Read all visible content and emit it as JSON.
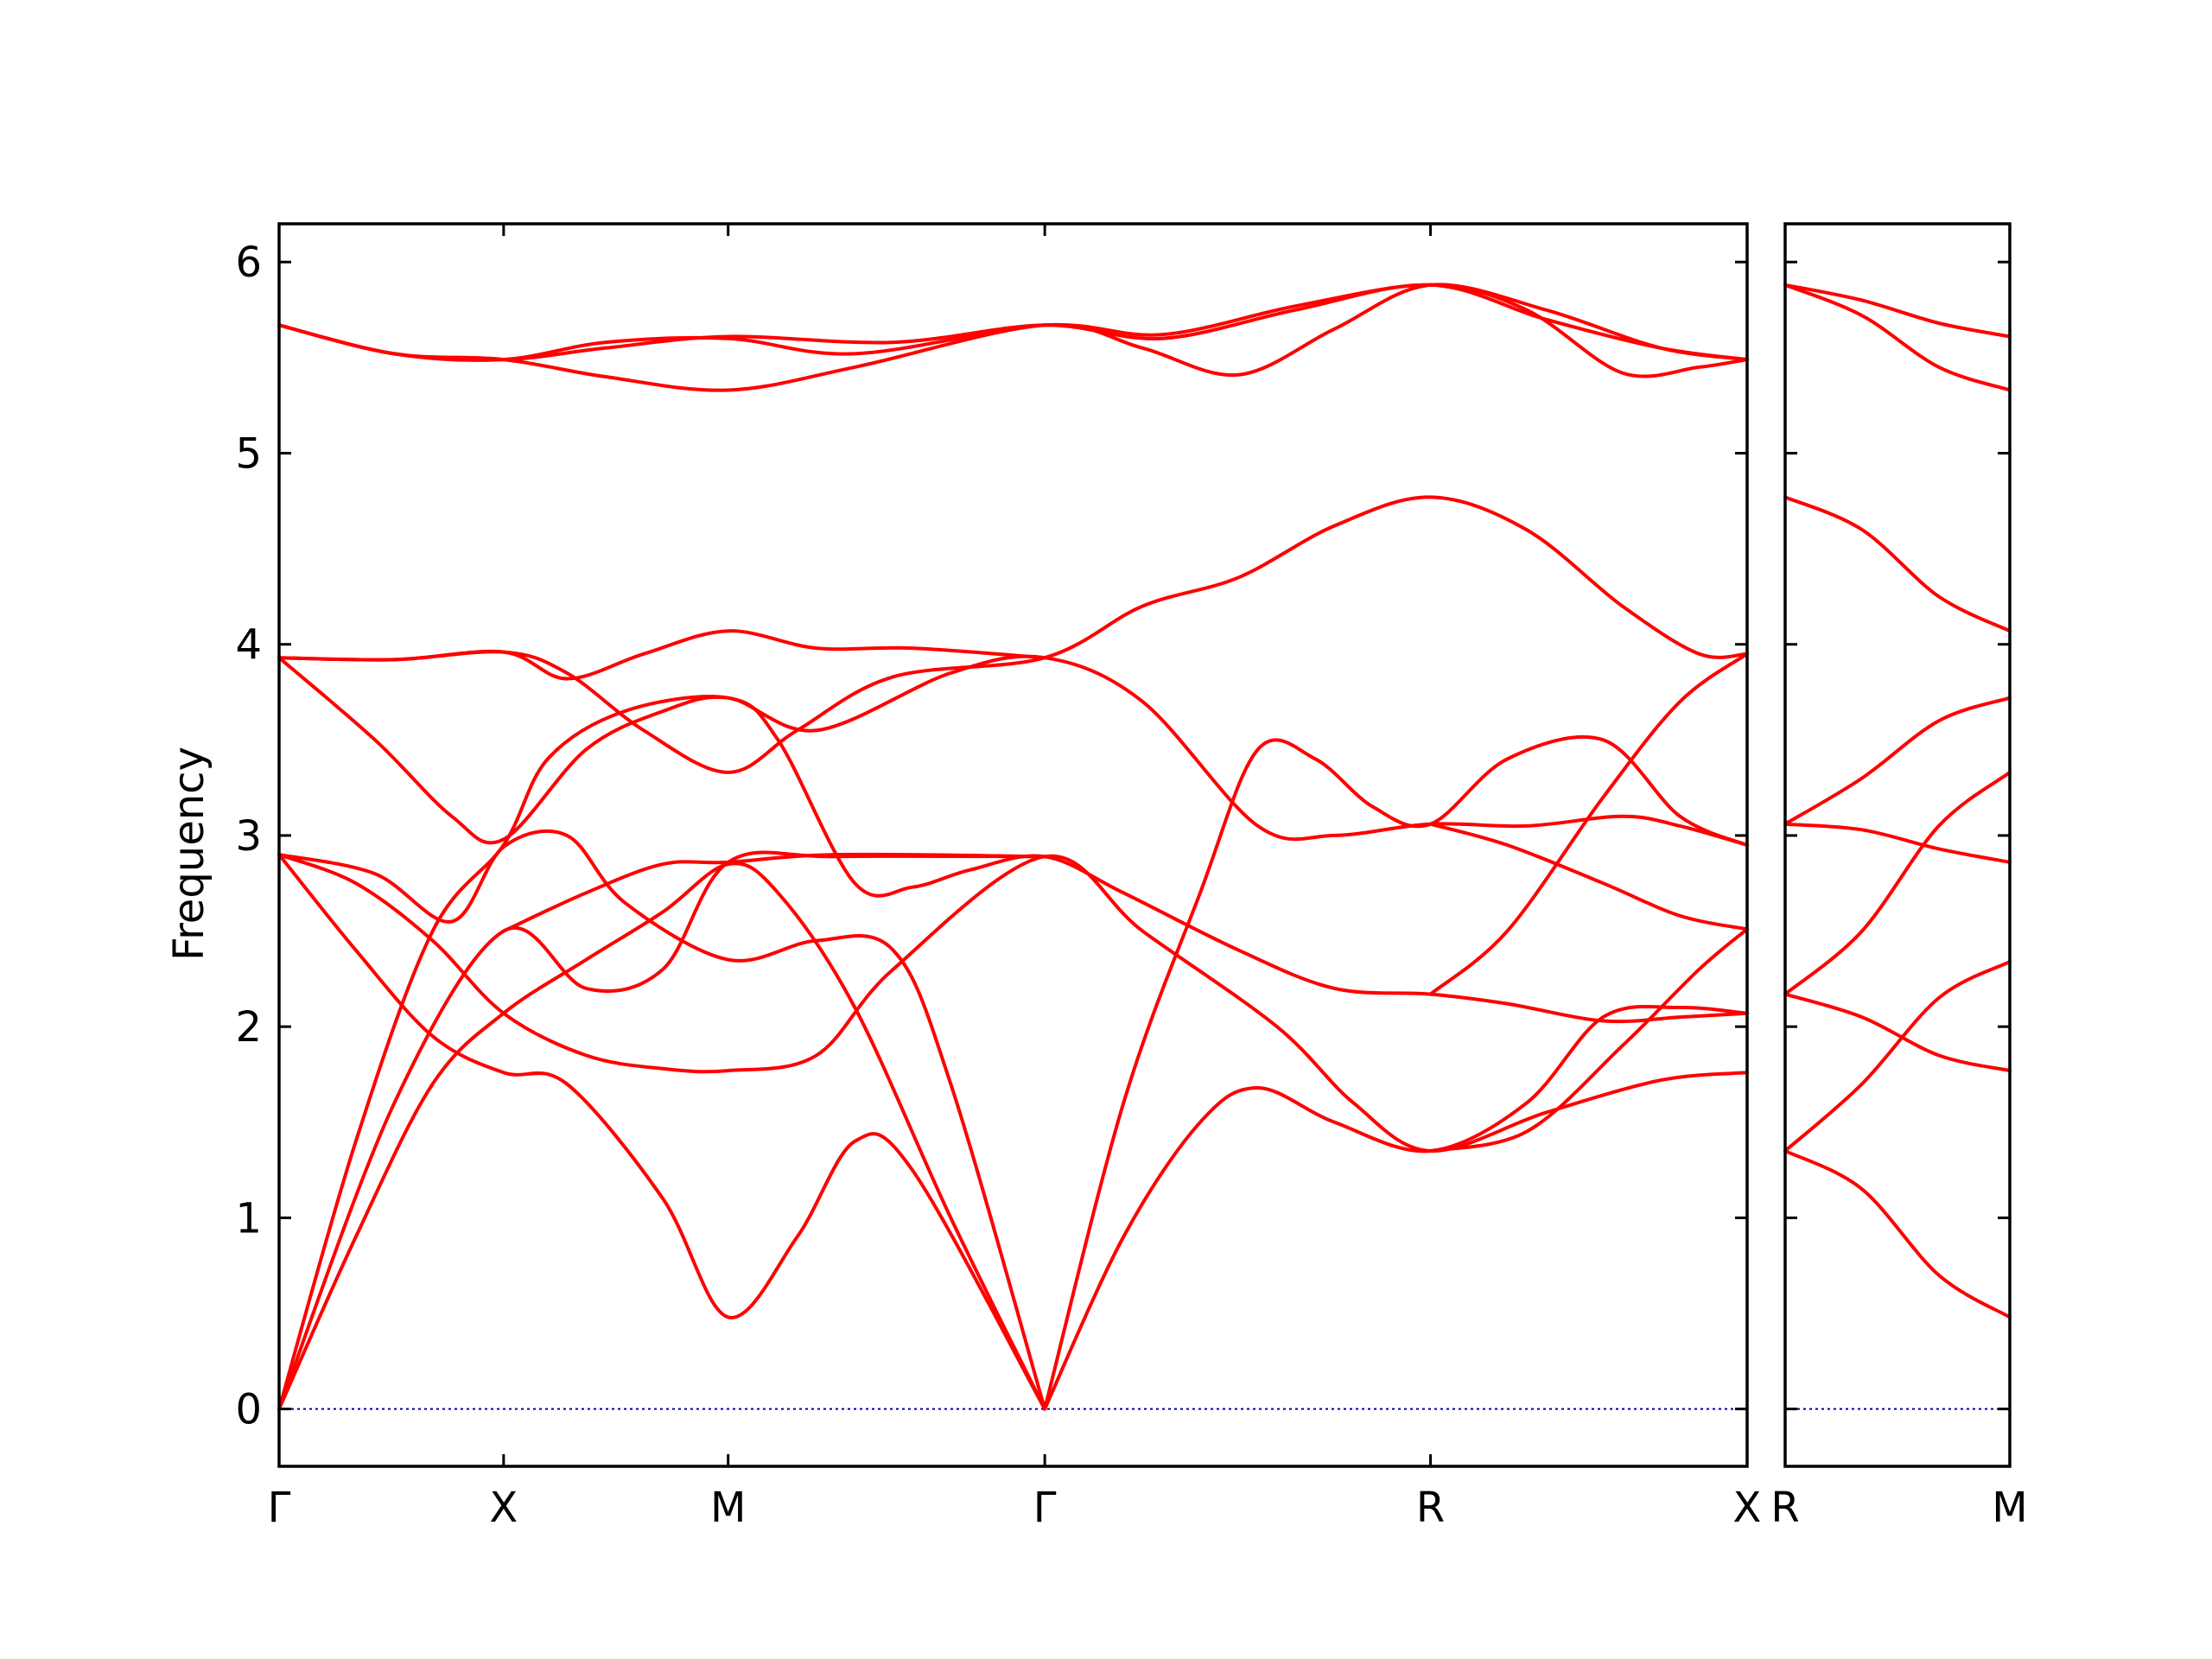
{
  "chart_data": {
    "type": "line",
    "ylabel": "Frequency",
    "xlabel": "",
    "title": "",
    "ylim": [
      -0.3,
      6.2
    ],
    "yticks": [
      0,
      1,
      2,
      3,
      4,
      5,
      6
    ],
    "grid": false,
    "line_color": "#ff0000",
    "zero_line_color": "#0000aa",
    "panels": [
      {
        "name": "main",
        "xlim": [
          0,
          7.65
        ],
        "xticks": [
          {
            "x": 0,
            "label": "Γ"
          },
          {
            "x": 1.17,
            "label": "X"
          },
          {
            "x": 2.34,
            "label": "M"
          },
          {
            "x": 3.99,
            "label": "Γ"
          },
          {
            "x": 6.0,
            "label": "R"
          },
          {
            "x": 7.65,
            "label": "X"
          }
        ],
        "bands": [
          [
            [
              0,
              0
            ],
            [
              0.4,
              1.4
            ],
            [
              0.8,
              2.5
            ],
            [
              1.17,
              2.95
            ],
            [
              1.4,
              3.4
            ],
            [
              1.8,
              3.65
            ],
            [
              2.34,
              3.72
            ],
            [
              2.6,
              3.5
            ],
            [
              3.0,
              2.75
            ],
            [
              3.3,
              2.73
            ],
            [
              3.6,
              2.82
            ],
            [
              3.99,
              2.89
            ],
            [
              4.4,
              2.7
            ],
            [
              5.0,
              2.4
            ],
            [
              5.5,
              2.2
            ],
            [
              6.0,
              2.17
            ],
            [
              6.4,
              2.12
            ],
            [
              6.9,
              2.03
            ],
            [
              7.3,
              2.05
            ],
            [
              7.65,
              2.07
            ]
          ],
          [
            [
              0,
              0
            ],
            [
              0.4,
              0.9
            ],
            [
              0.8,
              1.7
            ],
            [
              1.17,
              2.07
            ],
            [
              1.6,
              2.35
            ],
            [
              2.0,
              2.6
            ],
            [
              2.34,
              2.85
            ],
            [
              2.6,
              2.7
            ],
            [
              3.0,
              2.1
            ],
            [
              3.5,
              1.0
            ],
            [
              3.99,
              0
            ]
          ],
          [
            [
              0,
              2.9
            ],
            [
              0.4,
              2.4
            ],
            [
              0.8,
              1.95
            ],
            [
              1.17,
              1.76
            ],
            [
              1.5,
              1.7
            ],
            [
              2.0,
              1.1
            ],
            [
              2.34,
              0.48
            ],
            [
              2.7,
              0.9
            ],
            [
              3.0,
              1.4
            ],
            [
              3.3,
              1.25
            ],
            [
              3.99,
              0
            ]
          ],
          [
            [
              0,
              2.9
            ],
            [
              0.4,
              2.75
            ],
            [
              0.8,
              2.45
            ],
            [
              1.17,
              2.07
            ],
            [
              1.6,
              1.85
            ],
            [
              2.0,
              1.78
            ],
            [
              2.34,
              1.77
            ],
            [
              2.8,
              1.85
            ],
            [
              3.2,
              2.3
            ],
            [
              3.99,
              2.89
            ],
            [
              4.5,
              2.5
            ],
            [
              5.2,
              2.0
            ],
            [
              5.6,
              1.6
            ],
            [
              6.0,
              1.35
            ],
            [
              6.6,
              1.55
            ],
            [
              7.2,
              1.72
            ],
            [
              7.65,
              1.76
            ]
          ],
          [
            [
              0,
              2.9
            ],
            [
              0.5,
              2.8
            ],
            [
              0.9,
              2.55
            ],
            [
              1.17,
              2.94
            ],
            [
              1.5,
              3.0
            ],
            [
              1.8,
              2.65
            ],
            [
              2.34,
              2.35
            ],
            [
              2.8,
              2.45
            ],
            [
              3.2,
              2.4
            ],
            [
              3.5,
              1.7
            ],
            [
              3.99,
              0
            ]
          ],
          [
            [
              0,
              3.93
            ],
            [
              0.5,
              3.5
            ],
            [
              0.9,
              3.1
            ],
            [
              1.17,
              2.98
            ],
            [
              1.6,
              3.45
            ],
            [
              2.0,
              3.65
            ],
            [
              2.34,
              3.72
            ],
            [
              2.8,
              3.55
            ],
            [
              3.5,
              3.85
            ],
            [
              3.99,
              3.93
            ],
            [
              4.5,
              3.7
            ],
            [
              5.1,
              3.05
            ],
            [
              5.5,
              3.0
            ],
            [
              6.0,
              3.06
            ],
            [
              6.5,
              3.05
            ],
            [
              7.0,
              3.1
            ],
            [
              7.3,
              3.05
            ],
            [
              7.65,
              2.95
            ]
          ],
          [
            [
              0,
              3.93
            ],
            [
              0.6,
              3.92
            ],
            [
              1.17,
              3.96
            ],
            [
              1.5,
              3.85
            ],
            [
              1.9,
              3.55
            ],
            [
              2.34,
              3.33
            ],
            [
              2.7,
              3.55
            ],
            [
              3.2,
              3.83
            ],
            [
              3.99,
              3.93
            ],
            [
              4.5,
              4.2
            ],
            [
              5.0,
              4.35
            ],
            [
              5.5,
              4.62
            ],
            [
              6.0,
              4.77
            ],
            [
              6.5,
              4.6
            ],
            [
              7.0,
              4.2
            ],
            [
              7.4,
              3.95
            ],
            [
              7.65,
              3.95
            ]
          ],
          [
            [
              0,
              3.93
            ],
            [
              0.6,
              3.92
            ],
            [
              1.17,
              3.96
            ],
            [
              1.5,
              3.82
            ],
            [
              1.9,
              3.95
            ],
            [
              2.34,
              4.07
            ],
            [
              2.8,
              3.98
            ],
            [
              3.3,
              3.98
            ],
            [
              3.99,
              3.93
            ]
          ],
          [
            [
              0,
              5.67
            ],
            [
              0.6,
              5.52
            ],
            [
              1.17,
              5.49
            ],
            [
              1.7,
              5.55
            ],
            [
              2.34,
              5.61
            ],
            [
              3.2,
              5.58
            ],
            [
              3.99,
              5.67
            ],
            [
              4.6,
              5.6
            ],
            [
              5.3,
              5.75
            ],
            [
              6.0,
              5.88
            ],
            [
              6.6,
              5.7
            ],
            [
              7.2,
              5.55
            ],
            [
              7.65,
              5.49
            ]
          ],
          [
            [
              0,
              5.67
            ],
            [
              0.6,
              5.52
            ],
            [
              1.17,
              5.49
            ],
            [
              1.7,
              5.4
            ],
            [
              2.34,
              5.33
            ],
            [
              3.0,
              5.45
            ],
            [
              3.99,
              5.67
            ],
            [
              4.5,
              5.55
            ],
            [
              5.0,
              5.41
            ],
            [
              5.5,
              5.65
            ],
            [
              6.0,
              5.88
            ],
            [
              6.6,
              5.75
            ],
            [
              7.2,
              5.55
            ],
            [
              7.65,
              5.49
            ]
          ],
          [
            [
              0,
              5.67
            ],
            [
              0.6,
              5.52
            ],
            [
              1.17,
              5.49
            ],
            [
              1.7,
              5.58
            ],
            [
              2.34,
              5.6
            ],
            [
              3.0,
              5.52
            ],
            [
              3.99,
              5.67
            ],
            [
              4.6,
              5.62
            ],
            [
              5.3,
              5.77
            ],
            [
              6.0,
              5.88
            ],
            [
              6.5,
              5.75
            ],
            [
              7.0,
              5.42
            ],
            [
              7.4,
              5.45
            ],
            [
              7.65,
              5.49
            ]
          ],
          [
            [
              0,
              0
            ],
            [
              0.6,
              1.6
            ],
            [
              1.17,
              2.5
            ],
            [
              1.6,
              2.2
            ],
            [
              2.0,
              2.3
            ],
            [
              2.34,
              2.86
            ],
            [
              2.9,
              2.89
            ],
            [
              3.99,
              2.89
            ]
          ],
          [
            [
              1.17,
              2.5
            ],
            [
              1.6,
              2.7
            ],
            [
              2.0,
              2.85
            ],
            [
              2.34,
              2.86
            ],
            [
              2.9,
              2.9
            ],
            [
              3.99,
              2.89
            ]
          ],
          [
            [
              3.99,
              0
            ],
            [
              4.4,
              1.6
            ],
            [
              4.8,
              2.7
            ],
            [
              5.1,
              3.45
            ],
            [
              5.4,
              3.4
            ],
            [
              5.7,
              3.15
            ],
            [
              6.0,
              3.06
            ],
            [
              6.4,
              3.4
            ],
            [
              6.9,
              3.5
            ],
            [
              7.3,
              3.1
            ],
            [
              7.65,
              2.95
            ]
          ],
          [
            [
              3.99,
              0
            ],
            [
              4.4,
              0.9
            ],
            [
              4.8,
              1.5
            ],
            [
              5.1,
              1.68
            ],
            [
              5.5,
              1.5
            ],
            [
              6.0,
              1.35
            ],
            [
              6.5,
              1.6
            ],
            [
              6.9,
              2.05
            ],
            [
              7.3,
              2.1
            ],
            [
              7.65,
              2.07
            ]
          ],
          [
            [
              6.0,
              3.06
            ],
            [
              6.4,
              2.95
            ],
            [
              6.9,
              2.75
            ],
            [
              7.3,
              2.58
            ],
            [
              7.65,
              2.51
            ]
          ],
          [
            [
              6.0,
              2.17
            ],
            [
              6.4,
              2.5
            ],
            [
              6.9,
              3.2
            ],
            [
              7.3,
              3.7
            ],
            [
              7.65,
              3.95
            ]
          ],
          [
            [
              6.0,
              1.35
            ],
            [
              6.5,
              1.45
            ],
            [
              7.0,
              1.9
            ],
            [
              7.4,
              2.3
            ],
            [
              7.65,
              2.51
            ]
          ]
        ]
      },
      {
        "name": "side",
        "xlim": [
          0,
          1.17
        ],
        "xticks": [
          {
            "x": 0,
            "label": "R"
          },
          {
            "x": 1.17,
            "label": "M"
          }
        ],
        "bands": [
          [
            [
              0,
              5.88
            ],
            [
              0.4,
              5.8
            ],
            [
              0.8,
              5.68
            ],
            [
              1.17,
              5.61
            ]
          ],
          [
            [
              0,
              5.88
            ],
            [
              0.4,
              5.72
            ],
            [
              0.8,
              5.45
            ],
            [
              1.17,
              5.33
            ]
          ],
          [
            [
              0,
              4.77
            ],
            [
              0.4,
              4.6
            ],
            [
              0.8,
              4.25
            ],
            [
              1.17,
              4.07
            ]
          ],
          [
            [
              0,
              3.06
            ],
            [
              0.4,
              3.3
            ],
            [
              0.8,
              3.6
            ],
            [
              1.17,
              3.72
            ]
          ],
          [
            [
              0,
              3.06
            ],
            [
              0.4,
              3.03
            ],
            [
              0.8,
              2.93
            ],
            [
              1.17,
              2.86
            ]
          ],
          [
            [
              0,
              2.17
            ],
            [
              0.4,
              2.5
            ],
            [
              0.8,
              3.05
            ],
            [
              1.17,
              3.33
            ]
          ],
          [
            [
              0,
              2.17
            ],
            [
              0.4,
              2.05
            ],
            [
              0.8,
              1.85
            ],
            [
              1.17,
              1.77
            ]
          ],
          [
            [
              0,
              1.35
            ],
            [
              0.4,
              1.7
            ],
            [
              0.8,
              2.15
            ],
            [
              1.17,
              2.34
            ]
          ],
          [
            [
              0,
              1.35
            ],
            [
              0.4,
              1.15
            ],
            [
              0.8,
              0.7
            ],
            [
              1.17,
              0.48
            ]
          ]
        ]
      }
    ]
  }
}
